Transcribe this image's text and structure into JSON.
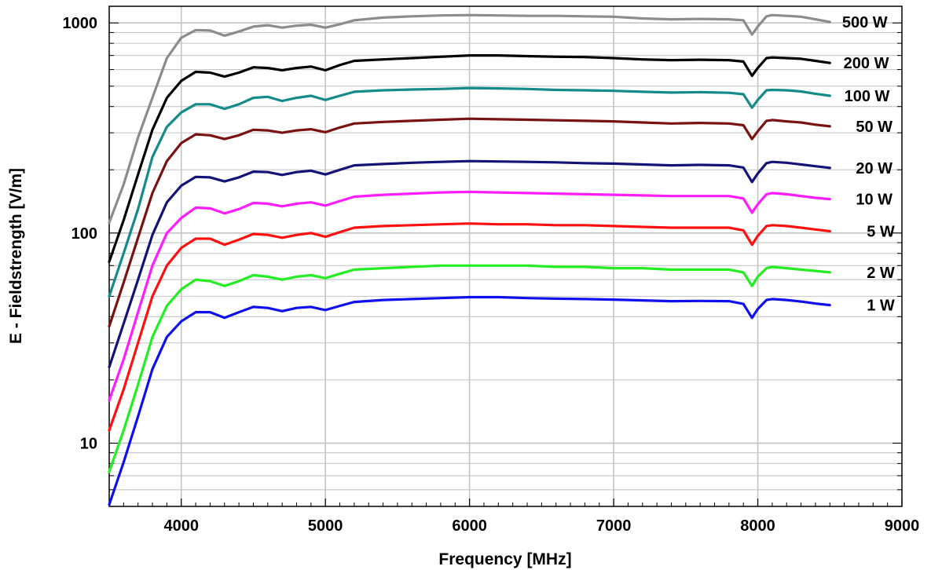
{
  "chart_data": {
    "type": "line",
    "title": "",
    "xlabel": "Frequency [MHz]",
    "ylabel": "E - Fieldstrength [V/m]",
    "xlim": [
      3500,
      9000
    ],
    "ylim": [
      5,
      1200
    ],
    "yscale": "log",
    "grid": true,
    "legend": "labels at right end of each line",
    "x_ticks": [
      "4000",
      "5000",
      "6000",
      "7000",
      "8000",
      "9000"
    ],
    "y_ticks": [
      "10",
      "100",
      "1000"
    ],
    "x": [
      3500,
      3600,
      3700,
      3800,
      3900,
      4000,
      4100,
      4200,
      4300,
      4400,
      4500,
      4600,
      4700,
      4800,
      4900,
      5000,
      5100,
      5200,
      5400,
      5600,
      5800,
      6000,
      6200,
      6400,
      6600,
      6800,
      7000,
      7200,
      7400,
      7600,
      7800,
      7900,
      7960,
      8000,
      8060,
      8100,
      8200,
      8300,
      8400,
      8500
    ],
    "series": [
      {
        "name": "500 W",
        "color": "#8c8c8c",
        "label_x": 8900,
        "values": [
          112,
          170,
          285,
          440,
          680,
          850,
          925,
          920,
          870,
          910,
          960,
          975,
          950,
          970,
          980,
          950,
          985,
          1030,
          1060,
          1075,
          1085,
          1090,
          1085,
          1080,
          1080,
          1075,
          1070,
          1050,
          1040,
          1045,
          1040,
          1030,
          880,
          960,
          1075,
          1090,
          1080,
          1070,
          1040,
          1010
        ]
      },
      {
        "name": "200 W",
        "color": "#000000",
        "label_x": 8910,
        "values": [
          73,
          115,
          190,
          310,
          440,
          530,
          585,
          580,
          555,
          580,
          615,
          610,
          595,
          610,
          620,
          595,
          630,
          660,
          670,
          680,
          690,
          700,
          700,
          695,
          690,
          688,
          680,
          670,
          665,
          668,
          665,
          655,
          560,
          610,
          680,
          685,
          680,
          675,
          660,
          645
        ]
      },
      {
        "name": "100 W",
        "color": "#148a8a",
        "label_x": 8915,
        "values": [
          50,
          80,
          130,
          230,
          320,
          375,
          410,
          410,
          390,
          410,
          440,
          445,
          425,
          440,
          450,
          430,
          450,
          470,
          478,
          482,
          485,
          490,
          488,
          485,
          480,
          478,
          475,
          470,
          466,
          468,
          465,
          458,
          395,
          430,
          478,
          480,
          478,
          472,
          460,
          450
        ]
      },
      {
        "name": "50 W",
        "color": "#7a1212",
        "label_x": 8935,
        "values": [
          36,
          58,
          95,
          155,
          220,
          268,
          295,
          292,
          280,
          292,
          310,
          308,
          300,
          308,
          312,
          302,
          318,
          332,
          338,
          342,
          346,
          350,
          348,
          346,
          344,
          342,
          340,
          336,
          332,
          334,
          332,
          326,
          280,
          305,
          342,
          345,
          340,
          336,
          328,
          322
        ]
      },
      {
        "name": "20 W",
        "color": "#141478",
        "label_x": 8935,
        "values": [
          23,
          37,
          60,
          98,
          140,
          168,
          185,
          184,
          176,
          184,
          196,
          195,
          189,
          195,
          198,
          190,
          200,
          210,
          213,
          216,
          218,
          220,
          219,
          218,
          217,
          215,
          214,
          212,
          210,
          211,
          210,
          205,
          175,
          192,
          215,
          218,
          216,
          212,
          208,
          204
        ]
      },
      {
        "name": "10 W",
        "color": "#ff1cff",
        "label_x": 8935,
        "values": [
          16,
          25,
          42,
          70,
          100,
          118,
          132,
          131,
          124,
          130,
          139,
          138,
          134,
          138,
          140,
          135,
          142,
          149,
          152,
          154,
          156,
          157,
          156,
          155,
          154,
          153,
          152,
          151,
          150,
          150,
          150,
          146,
          125,
          137,
          153,
          155,
          153,
          150,
          147,
          145
        ]
      },
      {
        "name": "5 W",
        "color": "#ff1010",
        "label_x": 8950,
        "values": [
          11.5,
          18,
          30,
          50,
          70,
          85,
          94,
          94,
          88,
          93,
          99,
          98,
          95,
          98,
          100,
          96,
          101,
          106,
          108,
          109,
          110,
          111,
          110,
          110,
          109,
          109,
          108,
          107,
          106,
          106,
          106,
          103,
          88,
          97,
          108,
          109,
          108,
          106,
          104,
          102
        ]
      },
      {
        "name": "2 W",
        "color": "#22ee22",
        "label_x": 8950,
        "values": [
          7.3,
          11.5,
          19,
          32,
          45,
          54,
          60,
          59,
          56,
          59,
          63,
          62,
          60,
          62,
          63,
          61,
          64,
          67,
          68,
          69,
          70,
          70,
          70,
          70,
          69,
          69,
          68,
          68,
          67,
          67,
          67,
          65,
          56,
          62,
          68,
          69,
          68,
          67,
          66,
          65
        ]
      },
      {
        "name": "1 W",
        "color": "#1010ee",
        "label_x": 8950,
        "values": [
          5.1,
          8.1,
          13.4,
          22.5,
          32,
          38,
          42,
          42,
          39.5,
          42,
          44.5,
          44,
          42.5,
          44,
          44.5,
          43,
          45,
          47,
          48,
          48.5,
          49,
          49.5,
          49.5,
          49,
          48.7,
          48.5,
          48.2,
          47.8,
          47.4,
          47.5,
          47.4,
          46,
          39.5,
          43.5,
          48,
          48.5,
          48,
          47.2,
          46.2,
          45.4
        ]
      }
    ]
  }
}
